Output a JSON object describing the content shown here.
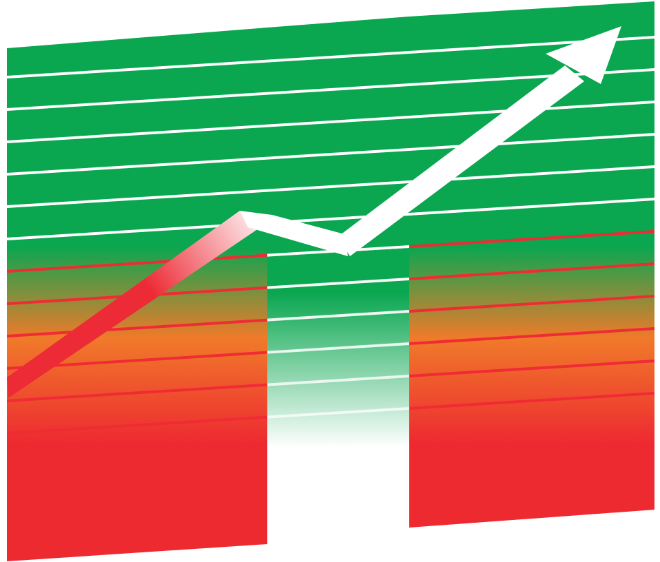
{
  "illustration": {
    "subject": "rising-trend-arrow-over-striped-panel",
    "colors": {
      "green": "#0aa650",
      "orange": "#f07a2a",
      "red": "#ee2a31",
      "stripe_white": "#ffffff",
      "stripe_red": "#ef2b33",
      "arrow_white": "#ffffff",
      "arrow_red": "#ed2b36"
    },
    "icons": [
      "trend-up-arrow-icon"
    ]
  }
}
